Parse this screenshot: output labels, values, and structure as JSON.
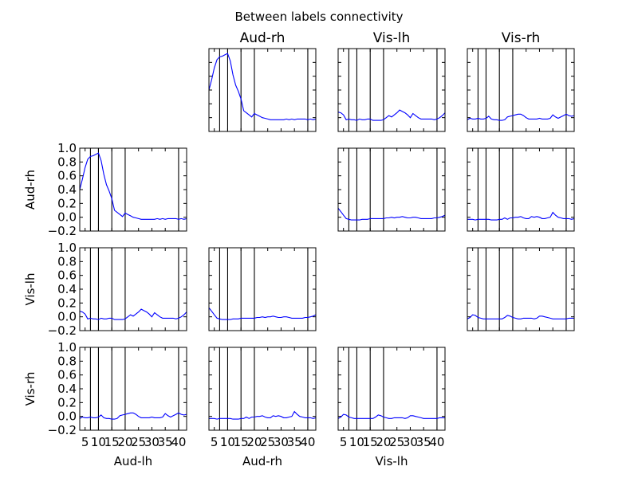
{
  "figure": {
    "title": "Between labels connectivity",
    "labels": [
      "Aud-lh",
      "Aud-rh",
      "Vis-lh",
      "Vis-rh"
    ]
  },
  "colors": {
    "line": "#0000ff",
    "axes": "#000000",
    "background": "#ffffff"
  },
  "chart_data": {
    "type": "line",
    "layout": "lower-and-upper-triangular grid of subplots, diagonal empty",
    "title": "Between labels connectivity",
    "xlim": [
      3,
      43
    ],
    "ylim": [
      -0.2,
      1.0
    ],
    "xticks": [
      5,
      10,
      15,
      20,
      25,
      30,
      35,
      40
    ],
    "xtick_labels": [
      "5",
      "10",
      "15",
      "20",
      "25",
      "30",
      "35",
      "40"
    ],
    "yticks": [
      -0.2,
      0.0,
      0.2,
      0.4,
      0.6,
      0.8,
      1.0
    ],
    "ytick_labels": [
      "−0.2",
      "0.0",
      "0.2",
      "0.4",
      "0.6",
      "0.8",
      "1.0"
    ],
    "vertical_lines_x": [
      7,
      10,
      15,
      20,
      40
    ],
    "x": [
      3,
      4,
      5,
      6,
      7,
      8,
      9,
      10,
      11,
      12,
      13,
      14,
      15,
      16,
      17,
      18,
      19,
      20,
      21,
      22,
      23,
      24,
      25,
      26,
      27,
      28,
      29,
      30,
      31,
      32,
      33,
      34,
      35,
      36,
      37,
      38,
      39,
      40,
      41,
      42,
      43
    ],
    "series": {
      "Aud-rh|Aud-lh": [
        0.4,
        0.55,
        0.72,
        0.84,
        0.88,
        0.89,
        0.91,
        0.93,
        0.82,
        0.62,
        0.47,
        0.38,
        0.27,
        0.1,
        0.07,
        0.04,
        0.01,
        0.06,
        0.04,
        0.02,
        0.0,
        -0.01,
        -0.02,
        -0.03,
        -0.03,
        -0.03,
        -0.03,
        -0.03,
        -0.03,
        -0.02,
        -0.03,
        -0.02,
        -0.03,
        -0.02,
        -0.02,
        -0.02,
        -0.02,
        -0.03,
        -0.02,
        -0.03,
        -0.02
      ],
      "Vis-lh|Aud-lh": [
        0.08,
        0.07,
        0.04,
        -0.03,
        -0.02,
        -0.03,
        -0.03,
        -0.04,
        -0.02,
        -0.03,
        -0.03,
        -0.02,
        -0.02,
        -0.04,
        -0.04,
        -0.04,
        -0.04,
        -0.03,
        0.0,
        0.03,
        0.01,
        0.04,
        0.07,
        0.11,
        0.09,
        0.07,
        0.04,
        0.0,
        0.06,
        0.03,
        0.0,
        -0.02,
        -0.02,
        -0.02,
        -0.02,
        -0.02,
        -0.03,
        -0.02,
        0.0,
        0.03,
        0.07
      ],
      "Vis-lh|Aud-rh": [
        0.13,
        0.08,
        0.03,
        -0.02,
        -0.03,
        -0.04,
        -0.04,
        -0.04,
        -0.04,
        -0.03,
        -0.03,
        -0.03,
        -0.02,
        -0.02,
        -0.02,
        -0.02,
        -0.02,
        -0.02,
        -0.01,
        -0.01,
        0.0,
        -0.01,
        0.0,
        0.0,
        0.01,
        0.0,
        -0.01,
        -0.01,
        0.0,
        0.0,
        -0.01,
        -0.02,
        -0.02,
        -0.02,
        -0.02,
        -0.02,
        -0.01,
        -0.01,
        0.0,
        0.01,
        0.03
      ],
      "Vis-rh|Aud-lh": [
        -0.03,
        -0.01,
        -0.02,
        -0.02,
        -0.01,
        -0.02,
        -0.02,
        -0.01,
        0.02,
        -0.02,
        -0.03,
        -0.03,
        -0.04,
        -0.04,
        -0.03,
        0.01,
        0.02,
        0.03,
        0.04,
        0.05,
        0.05,
        0.03,
        0.0,
        -0.02,
        -0.02,
        -0.02,
        -0.02,
        -0.01,
        -0.02,
        -0.02,
        -0.02,
        -0.01,
        0.04,
        0.01,
        -0.01,
        0.01,
        0.03,
        0.05,
        0.03,
        0.02,
        0.03
      ],
      "Vis-rh|Aud-rh": [
        -0.03,
        -0.03,
        -0.03,
        -0.04,
        -0.03,
        -0.03,
        -0.03,
        -0.03,
        -0.03,
        -0.04,
        -0.04,
        -0.04,
        -0.03,
        -0.03,
        -0.01,
        -0.03,
        -0.01,
        -0.01,
        0.0,
        0.0,
        0.01,
        -0.01,
        -0.02,
        -0.02,
        0.01,
        0.0,
        0.01,
        0.0,
        -0.02,
        -0.02,
        -0.01,
        0.0,
        0.07,
        0.03,
        0.0,
        -0.01,
        -0.02,
        -0.02,
        -0.02,
        -0.03,
        -0.02
      ],
      "Vis-rh|Vis-lh": [
        -0.03,
        -0.01,
        0.03,
        0.02,
        -0.01,
        -0.02,
        -0.03,
        -0.03,
        -0.03,
        -0.03,
        -0.03,
        -0.03,
        -0.03,
        -0.03,
        -0.01,
        0.02,
        0.01,
        -0.01,
        -0.02,
        -0.03,
        -0.03,
        -0.02,
        -0.02,
        -0.02,
        -0.02,
        -0.03,
        -0.02,
        0.01,
        0.01,
        0.0,
        -0.01,
        -0.02,
        -0.03,
        -0.03,
        -0.03,
        -0.03,
        -0.03,
        -0.03,
        -0.02,
        -0.02,
        -0.02
      ]
    }
  }
}
